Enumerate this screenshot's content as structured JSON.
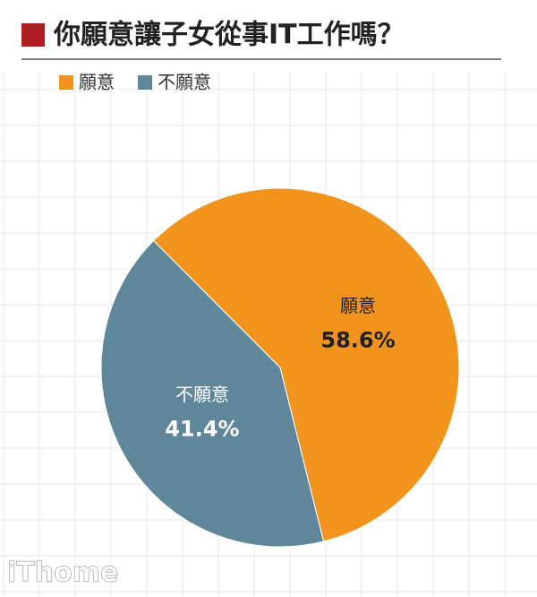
{
  "chart_data": {
    "type": "pie",
    "title": "你願意讓子女從事IT工作嗎？",
    "categories": [
      "願意",
      "不願意"
    ],
    "values": [
      58.6,
      41.4
    ],
    "value_labels": [
      "58.6%",
      "41.4%"
    ],
    "colors": [
      "#f0941e",
      "#5f8799"
    ],
    "watermark": "iThome"
  }
}
